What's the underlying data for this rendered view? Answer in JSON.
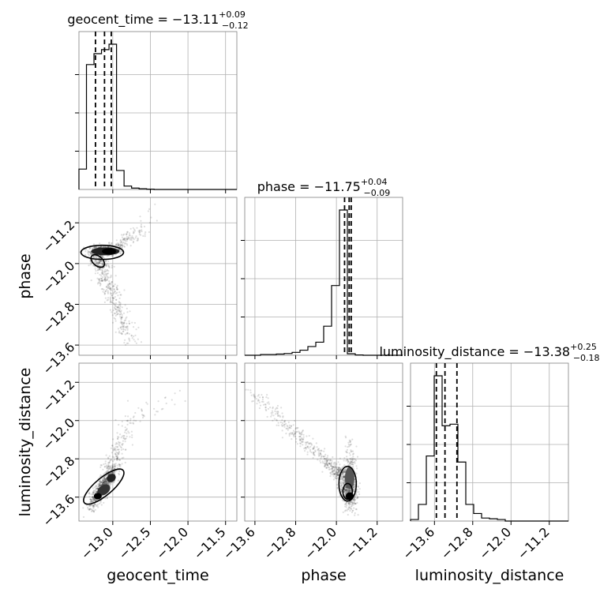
{
  "chart_data": {
    "type": "scatter",
    "params": [
      "geocent_time",
      "phase",
      "luminosity_distance"
    ],
    "titles": [
      {
        "param": "geocent_time",
        "median": "−13.11",
        "plus": "+0.09",
        "minus": "−0.12"
      },
      {
        "param": "phase",
        "median": "−11.75",
        "plus": "+0.04",
        "minus": "−0.09"
      },
      {
        "param": "luminosity_distance",
        "median": "−13.38",
        "plus": "+0.25",
        "minus": "−0.18"
      }
    ],
    "ranges": {
      "geocent_time": [
        -13.45,
        -11.35
      ],
      "phase": [
        -13.8,
        -10.7
      ],
      "luminosity_distance": [
        -14.1,
        -10.8
      ]
    },
    "ticks": {
      "geocent_time": [
        -13.0,
        -12.5,
        -12.0,
        -11.5
      ],
      "phase": [
        -13.6,
        -12.8,
        -12.0,
        -11.2
      ],
      "luminosity_distance": [
        -13.6,
        -12.8,
        -12.0,
        -11.2
      ]
    },
    "tick_labels": {
      "geocent_time": [
        "−13.0",
        "−12.5",
        "−12.0",
        "−11.5"
      ],
      "phase": [
        "−13.6",
        "−12.8",
        "−12.0",
        "−11.2"
      ],
      "luminosity_distance": [
        "−13.6",
        "−12.8",
        "−12.0",
        "−11.2"
      ]
    },
    "quantiles": {
      "geocent_time": [
        -13.23,
        -13.11,
        -13.02
      ],
      "phase": [
        -11.84,
        -11.75,
        -11.71
      ],
      "luminosity_distance": [
        -13.56,
        -13.38,
        -13.13
      ]
    },
    "histograms": {
      "geocent_time": {
        "edges": [
          -13.45,
          -13.35,
          -13.25,
          -13.15,
          -13.05,
          -12.95,
          -12.85,
          -12.75,
          -12.65,
          -12.55,
          -12.45,
          -12.35,
          -12.25,
          -12.15,
          -12.05,
          -11.95,
          -11.85,
          -11.75,
          -11.65,
          -11.55,
          -11.45,
          -11.35
        ],
        "counts": [
          0.15,
          0.92,
          1.0,
          1.03,
          1.07,
          0.14,
          0.025,
          0.01,
          0.005,
          0.002,
          0,
          0,
          0,
          0,
          0,
          0,
          0,
          0,
          0,
          0,
          0
        ]
      },
      "phase": {
        "edges": [
          -13.8,
          -13.645,
          -13.49,
          -13.335,
          -13.18,
          -13.025,
          -12.87,
          -12.715,
          -12.56,
          -12.405,
          -12.25,
          -12.095,
          -11.94,
          -11.785,
          -11.63,
          -11.475,
          -11.32,
          -11.165,
          -11.01,
          -10.855,
          -10.7
        ],
        "counts": [
          0,
          0,
          0.005,
          0.005,
          0.008,
          0.012,
          0.02,
          0.035,
          0.06,
          0.09,
          0.2,
          0.48,
          1.0,
          0.01,
          0.002,
          0,
          0,
          0,
          0,
          0
        ]
      },
      "luminosity_distance": {
        "edges": [
          -14.1,
          -13.935,
          -13.77,
          -13.605,
          -13.44,
          -13.275,
          -13.11,
          -12.945,
          -12.78,
          -12.615,
          -12.45,
          -12.285,
          -12.12,
          -11.955,
          -11.79,
          -11.625,
          -11.46,
          -11.295,
          -11.13,
          -10.965,
          -10.8
        ],
        "counts": [
          0.01,
          0.11,
          0.43,
          0.96,
          0.63,
          0.64,
          0.39,
          0.11,
          0.05,
          0.02,
          0.015,
          0.01,
          0,
          0,
          0,
          0,
          0,
          0,
          0,
          0
        ]
      }
    },
    "grid": true,
    "legend": "none"
  }
}
